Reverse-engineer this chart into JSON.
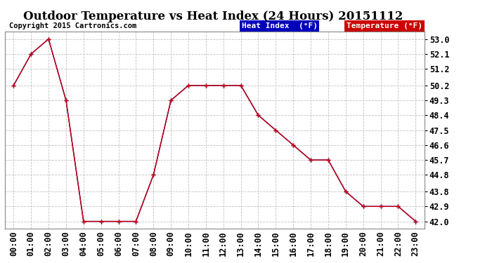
{
  "title": "Outdoor Temperature vs Heat Index (24 Hours) 20151112",
  "copyright_text": "Copyright 2015 Cartronics.com",
  "background_color": "#ffffff",
  "plot_bg_color": "#ffffff",
  "grid_color": "#bbbbbb",
  "x_labels": [
    "00:00",
    "01:00",
    "02:00",
    "03:00",
    "04:00",
    "05:00",
    "06:00",
    "07:00",
    "08:00",
    "09:00",
    "10:00",
    "11:00",
    "12:00",
    "13:00",
    "14:00",
    "15:00",
    "16:00",
    "17:00",
    "18:00",
    "19:00",
    "20:00",
    "21:00",
    "22:00",
    "23:00"
  ],
  "y_ticks": [
    42.0,
    42.9,
    43.8,
    44.8,
    45.7,
    46.6,
    47.5,
    48.4,
    49.3,
    50.2,
    51.2,
    52.1,
    53.0
  ],
  "ylim": [
    41.55,
    53.45
  ],
  "heat_index": [
    50.2,
    52.1,
    53.0,
    49.3,
    42.0,
    42.0,
    42.0,
    42.0,
    44.8,
    49.3,
    50.2,
    50.2,
    50.2,
    50.2,
    48.4,
    47.5,
    46.6,
    45.7,
    45.7,
    43.8,
    42.9,
    42.9,
    42.9,
    42.0
  ],
  "temperature": [
    50.2,
    52.1,
    53.0,
    49.3,
    42.0,
    42.0,
    42.0,
    42.0,
    44.8,
    49.3,
    50.2,
    50.2,
    50.2,
    50.2,
    48.4,
    47.5,
    46.6,
    45.7,
    45.7,
    43.8,
    42.9,
    42.9,
    42.9,
    42.0
  ],
  "heat_index_color": "#0000bb",
  "temperature_color": "#cc0000",
  "title_fontsize": 12,
  "tick_fontsize": 8.5,
  "copyright_fontsize": 7.5
}
